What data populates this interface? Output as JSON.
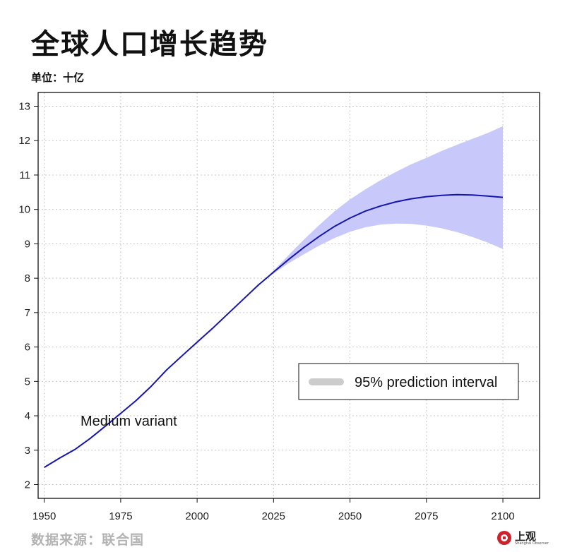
{
  "header": {
    "title": "全球人口增长趋势",
    "unit": "单位：十亿"
  },
  "footer": {
    "source": "数据来源：联合国",
    "logo_text": "上观",
    "logo_sub": "Shanghai Observer"
  },
  "colors": {
    "line": "#1515b0",
    "band": "#c8c8fb",
    "legend_swatch": "#cccccc",
    "grid": "#c8c8c8",
    "logo_red": "#d0202a"
  },
  "chart_data": {
    "type": "line",
    "title": "全球人口增长趋势",
    "ylabel": "单位：十亿",
    "xlabel": "",
    "xlim": [
      1948,
      2112
    ],
    "ylim": [
      1.6,
      13.4
    ],
    "x_ticks": [
      1950,
      1975,
      2000,
      2025,
      2050,
      2075,
      2100
    ],
    "y_ticks": [
      2,
      3,
      4,
      5,
      6,
      7,
      8,
      9,
      10,
      11,
      12,
      13
    ],
    "grid": true,
    "series": [
      {
        "name": "Medium variant",
        "x": [
          1950,
          1955,
          1960,
          1965,
          1970,
          1975,
          1980,
          1985,
          1990,
          1995,
          2000,
          2005,
          2010,
          2015,
          2020,
          2025,
          2030,
          2035,
          2040,
          2045,
          2050,
          2055,
          2060,
          2065,
          2070,
          2075,
          2080,
          2085,
          2090,
          2095,
          2100
        ],
        "y": [
          2.5,
          2.77,
          3.02,
          3.34,
          3.7,
          4.07,
          4.44,
          4.86,
          5.33,
          5.74,
          6.14,
          6.54,
          6.96,
          7.38,
          7.8,
          8.18,
          8.55,
          8.9,
          9.22,
          9.51,
          9.75,
          9.95,
          10.1,
          10.22,
          10.31,
          10.37,
          10.41,
          10.43,
          10.42,
          10.39,
          10.35
        ]
      }
    ],
    "interval": {
      "name": "95% prediction interval",
      "x": [
        2022,
        2025,
        2030,
        2035,
        2040,
        2045,
        2050,
        2055,
        2060,
        2065,
        2070,
        2075,
        2080,
        2085,
        2090,
        2095,
        2100
      ],
      "lower": [
        7.95,
        8.14,
        8.44,
        8.7,
        8.95,
        9.17,
        9.35,
        9.48,
        9.56,
        9.59,
        9.58,
        9.53,
        9.45,
        9.34,
        9.2,
        9.04,
        8.85
      ],
      "upper": [
        7.95,
        8.22,
        8.68,
        9.13,
        9.55,
        9.95,
        10.29,
        10.58,
        10.85,
        11.09,
        11.31,
        11.5,
        11.7,
        11.88,
        12.05,
        12.22,
        12.42
      ]
    },
    "legend": {
      "label": "95% prediction interval",
      "position": "bottom-right"
    },
    "annotations": [
      {
        "text": "Medium variant"
      }
    ]
  }
}
